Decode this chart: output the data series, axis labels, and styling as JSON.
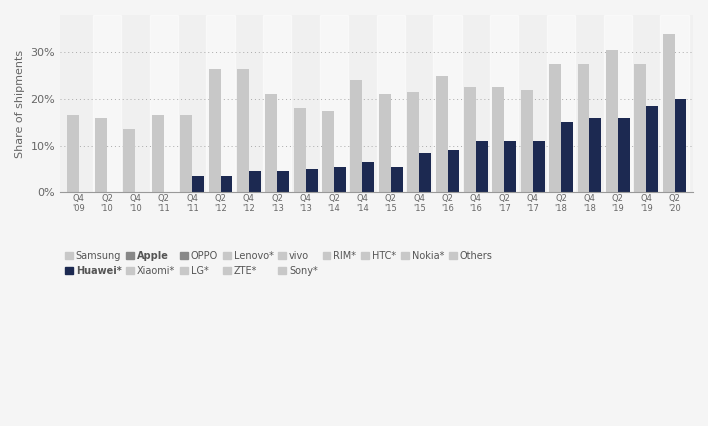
{
  "categories": [
    "Q4\n'09",
    "Q2\n'10",
    "Q4\n'10",
    "Q2\n'11",
    "Q4\n'11",
    "Q2\n'12",
    "Q4\n'12",
    "Q2\n'13",
    "Q4\n'13",
    "Q2\n'14",
    "Q4\n'14",
    "Q2\n'15",
    "Q4\n'15",
    "Q2\n'16",
    "Q4\n'16",
    "Q2\n'17",
    "Q4\n'17",
    "Q2\n'18",
    "Q4\n'18",
    "Q2\n'19",
    "Q4\n'19",
    "Q2\n'20"
  ],
  "samsung_vals": [
    16.5,
    16.0,
    13.5,
    16.5,
    16.5,
    26.5,
    26.5,
    21.0,
    18.0,
    17.5,
    24.0,
    21.0,
    21.5,
    25.0,
    22.5,
    22.5,
    22.0,
    27.5,
    27.5,
    30.5,
    27.5,
    34.0
  ],
  "huawei_vals": [
    0,
    0,
    0,
    0,
    3.5,
    3.5,
    4.5,
    4.5,
    5.0,
    5.5,
    6.5,
    5.5,
    8.5,
    9.0,
    11.0,
    11.0,
    11.0,
    15.0,
    16.0,
    16.0,
    18.5,
    20.0
  ],
  "samsung_color": "#c8c8c8",
  "huawei_color": "#1c2951",
  "background_color": "#f5f5f5",
  "plot_bg_color": "#f0f0f0",
  "ylabel": "Share of shipments",
  "ytick_labels": [
    "0%",
    "10%",
    "20%",
    "30%"
  ],
  "ytick_vals": [
    0,
    10,
    20,
    30
  ],
  "ylim": [
    0,
    38
  ],
  "legend_items": [
    "Samsung",
    "Huawei*",
    "Apple",
    "Xiaomi*",
    "OPPO",
    "LG*",
    "Lenovo*",
    "ZTE*",
    "vivo",
    "Sony*",
    "RIM*",
    "HTC*",
    "Nokia*",
    "Others"
  ],
  "legend_colors": [
    "#c8c8c8",
    "#1c2951",
    "#888888",
    "#c8c8c8",
    "#888888",
    "#c8c8c8",
    "#c8c8c8",
    "#c8c8c8",
    "#c8c8c8",
    "#c8c8c8",
    "#c8c8c8",
    "#c8c8c8",
    "#c8c8c8",
    "#c8c8c8"
  ],
  "legend_bold": [
    false,
    true,
    true,
    false,
    false,
    false,
    false,
    false,
    false,
    false,
    false,
    false,
    false,
    false
  ]
}
